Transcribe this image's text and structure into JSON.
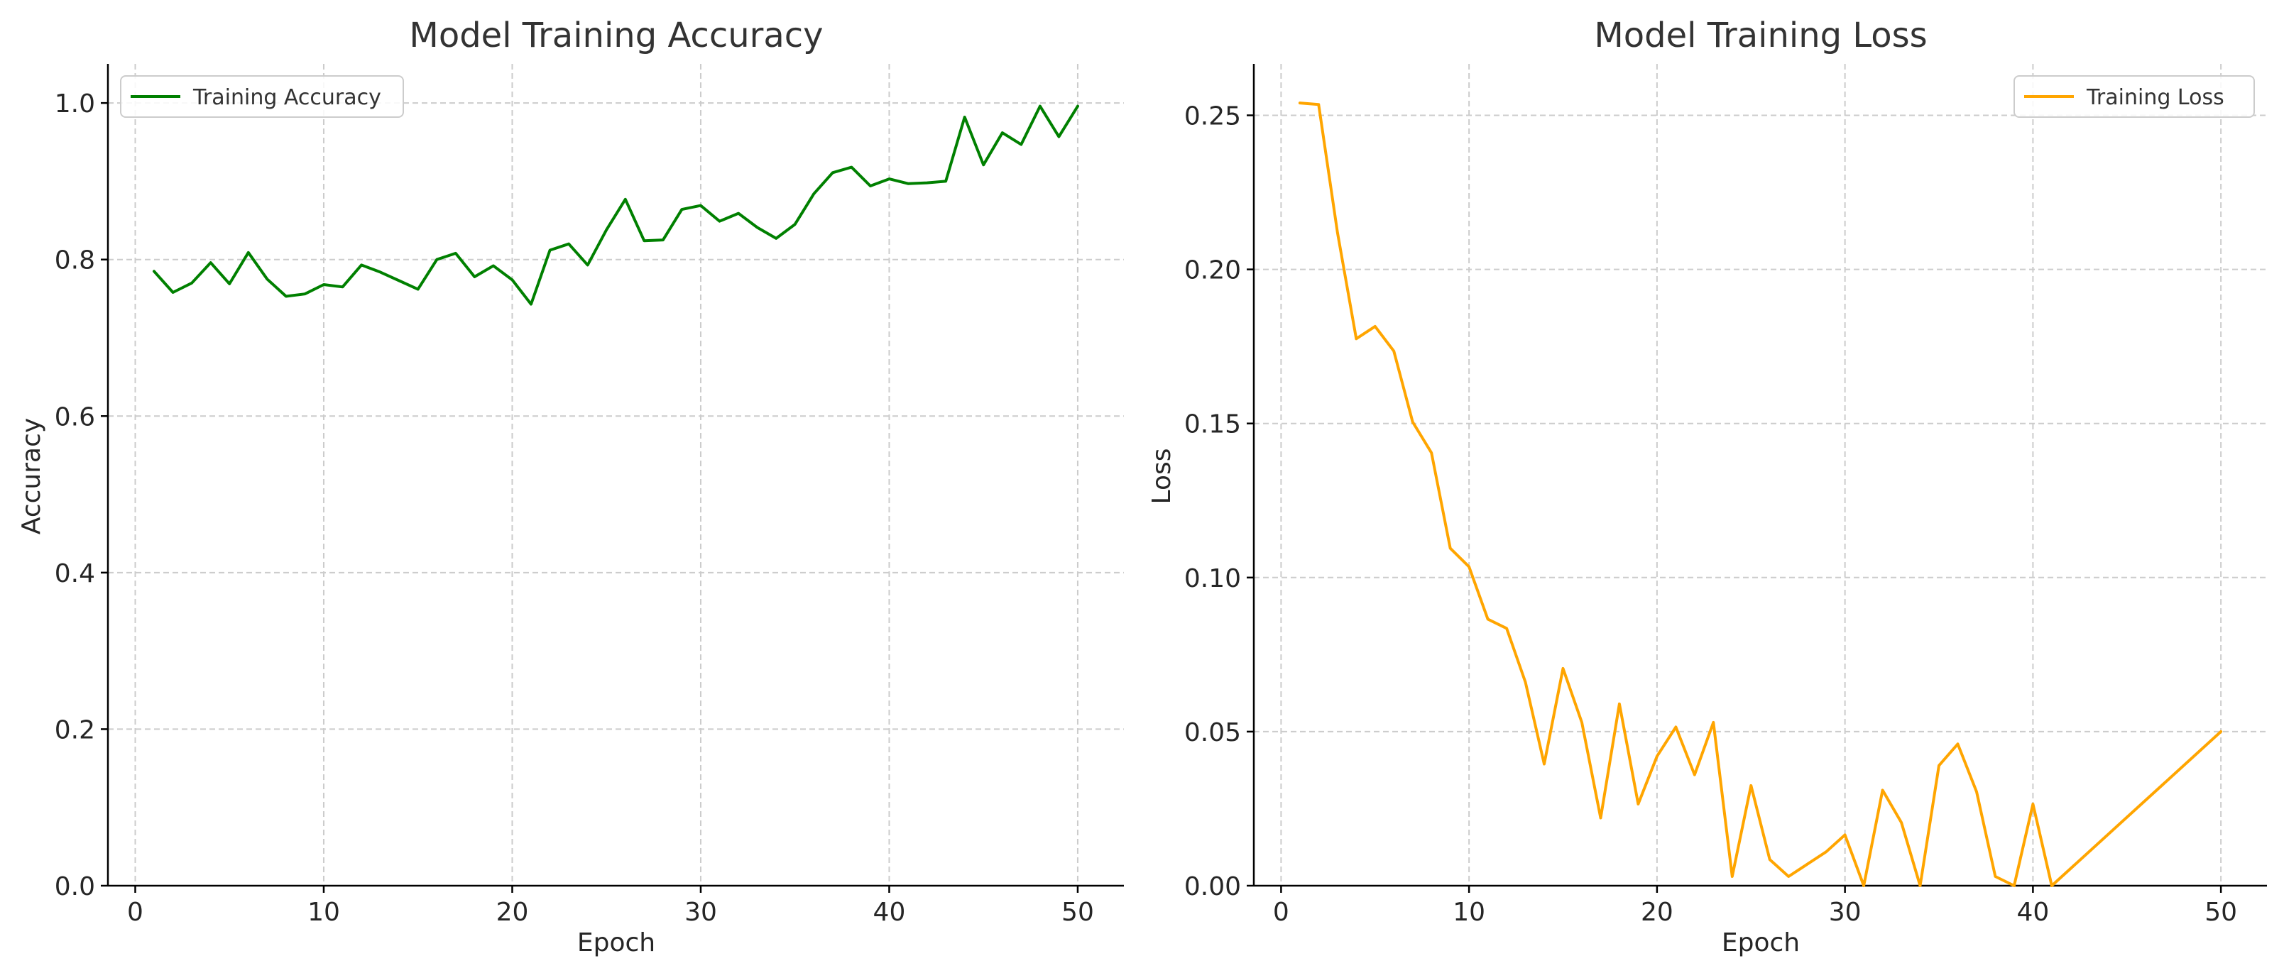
{
  "chart_data": [
    {
      "type": "line",
      "title": "Model Training Accuracy",
      "xlabel": "Epoch",
      "ylabel": "Accuracy",
      "xlim": [
        -1.45,
        52.45
      ],
      "ylim": [
        0.0,
        1.05
      ],
      "xticks": [
        0,
        10,
        20,
        30,
        40,
        50
      ],
      "yticks": [
        0.0,
        0.2,
        0.4,
        0.6,
        0.8,
        1.0
      ],
      "xtick_labels": [
        "0",
        "10",
        "20",
        "30",
        "40",
        "50"
      ],
      "ytick_labels": [
        "0.0",
        "0.2",
        "0.4",
        "0.6",
        "0.8",
        "1.0"
      ],
      "grid": true,
      "legend_position": "upper left",
      "series": [
        {
          "name": "Training Accuracy",
          "color": "#008000",
          "x": [
            1,
            2,
            3,
            4,
            5,
            6,
            7,
            8,
            9,
            10,
            11,
            12,
            13,
            14,
            15,
            16,
            17,
            18,
            19,
            20,
            21,
            22,
            23,
            24,
            25,
            26,
            27,
            28,
            29,
            30,
            31,
            32,
            33,
            34,
            35,
            36,
            37,
            38,
            39,
            40,
            41,
            42,
            43,
            44,
            45,
            46,
            47,
            48,
            49,
            50
          ],
          "y": [
            0.785,
            0.758,
            0.77,
            0.796,
            0.769,
            0.809,
            0.775,
            0.753,
            0.756,
            0.768,
            0.765,
            0.793,
            0.784,
            0.773,
            0.762,
            0.8,
            0.808,
            0.778,
            0.792,
            0.774,
            0.743,
            0.812,
            0.82,
            0.793,
            0.838,
            0.877,
            0.824,
            0.825,
            0.864,
            0.869,
            0.849,
            0.859,
            0.841,
            0.827,
            0.845,
            0.884,
            0.911,
            0.918,
            0.894,
            0.903,
            0.897,
            0.898,
            0.9,
            0.982,
            0.921,
            0.962,
            0.947,
            0.996,
            0.957,
            0.996
          ]
        }
      ]
    },
    {
      "type": "line",
      "title": "Model Training Loss",
      "xlabel": "Epoch",
      "ylabel": "Loss",
      "xlim": [
        -1.45,
        52.45
      ],
      "ylim": [
        0.0,
        0.2667
      ],
      "xticks": [
        0,
        10,
        20,
        30,
        40,
        50
      ],
      "yticks": [
        0.0,
        0.05,
        0.1,
        0.15,
        0.2,
        0.25
      ],
      "xtick_labels": [
        "0",
        "10",
        "20",
        "30",
        "40",
        "50"
      ],
      "ytick_labels": [
        "0.00",
        "0.05",
        "0.10",
        "0.15",
        "0.20",
        "0.25"
      ],
      "grid": true,
      "legend_position": "upper right",
      "series": [
        {
          "name": "Training Loss",
          "color": "#FFA500",
          "x": [
            1,
            2,
            3,
            4,
            5,
            6,
            7,
            8,
            9,
            10,
            11,
            12,
            13,
            14,
            15,
            16,
            17,
            18,
            19,
            20,
            21,
            22,
            23,
            24,
            25,
            26,
            27,
            28,
            29,
            30,
            31,
            32,
            33,
            34,
            35,
            36,
            37,
            38,
            39,
            40,
            41,
            50
          ],
          "y": [
            0.254,
            0.2535,
            0.212,
            0.1775,
            0.1815,
            0.1735,
            0.1505,
            0.1405,
            0.1095,
            0.1035,
            0.0865,
            0.0835,
            0.066,
            0.0395,
            0.0705,
            0.053,
            0.022,
            0.059,
            0.0265,
            0.042,
            0.0515,
            0.036,
            0.053,
            0.003,
            0.0325,
            0.0085,
            0.003,
            0.007,
            0.011,
            0.0165,
            0.0,
            0.031,
            0.0205,
            0.0,
            0.039,
            0.046,
            0.0305,
            0.003,
            0.0,
            0.0265,
            0.0,
            0.05
          ]
        }
      ]
    }
  ]
}
